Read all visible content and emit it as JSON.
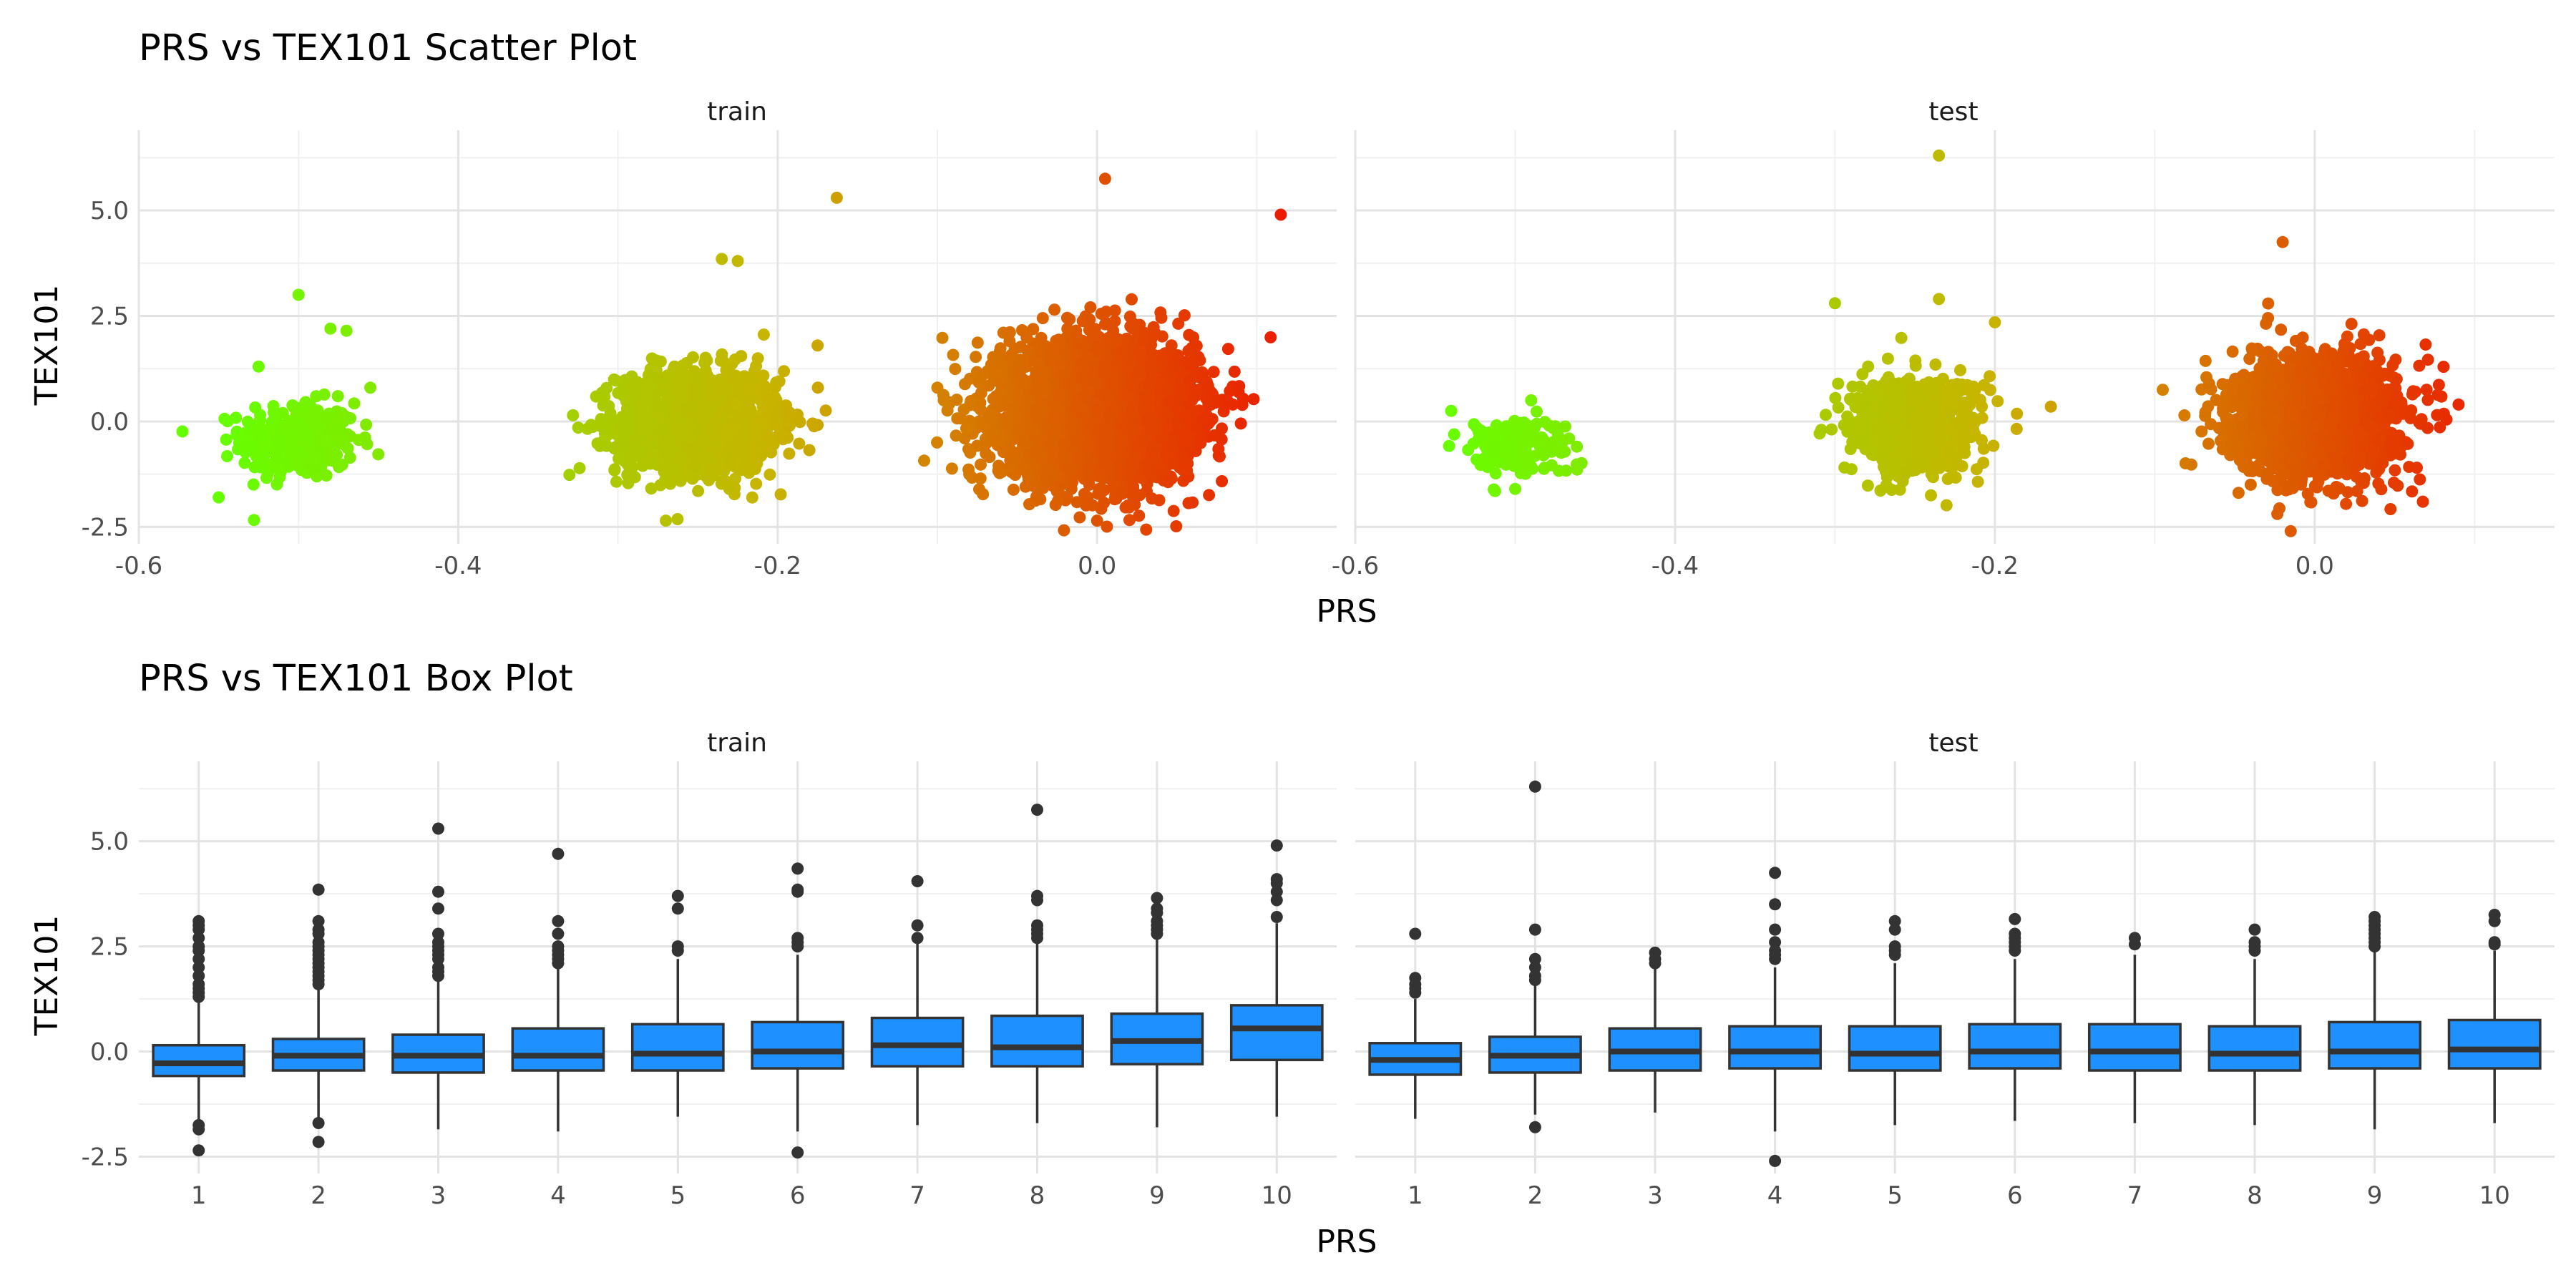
{
  "chart_data": [
    {
      "type": "scatter",
      "title": "PRS vs TEX101 Scatter Plot",
      "xlabel": "PRS",
      "ylabel": "TEX101",
      "facets": [
        "train",
        "test"
      ],
      "xlim": [
        -0.6,
        0.15
      ],
      "ylim": [
        -2.9,
        6.9
      ],
      "x_ticks": [
        "-0.6",
        "-0.4",
        "-0.2",
        "0.0"
      ],
      "x_tick_values": [
        -0.6,
        -0.4,
        -0.2,
        0.0
      ],
      "y_ticks": [
        "-2.5",
        "0.0",
        "2.5",
        "5.0"
      ],
      "y_tick_values": [
        -2.5,
        0.0,
        2.5,
        5.0
      ],
      "color_scale": {
        "low": "#66ff00",
        "mid": "#c8b400",
        "high": "#ee1100",
        "domain": [
          -0.55,
          0.14
        ]
      },
      "grid": true,
      "legend": "none",
      "series": [
        {
          "facet": "train",
          "clusters": [
            {
              "x_center": -0.5,
              "x_sd": 0.018,
              "y_center": -0.45,
              "y_sd": 0.45,
              "n": 350
            },
            {
              "x_center": -0.25,
              "x_sd": 0.025,
              "y_center": 0.0,
              "y_sd": 0.6,
              "n": 1400
            },
            {
              "x_center": 0.0,
              "x_sd": 0.03,
              "y_center": 0.25,
              "y_sd": 0.8,
              "n": 3600
            }
          ],
          "notable_points": [
            {
              "x": -0.5,
              "y": 3.0
            },
            {
              "x": -0.48,
              "y": 2.2
            },
            {
              "x": -0.47,
              "y": 2.15
            },
            {
              "x": -0.455,
              "y": 0.8
            },
            {
              "x": -0.525,
              "y": 1.3
            },
            {
              "x": -0.55,
              "y": -1.8
            },
            {
              "x": -0.27,
              "y": -2.35
            },
            {
              "x": -0.235,
              "y": 3.85
            },
            {
              "x": -0.225,
              "y": 3.8
            },
            {
              "x": -0.163,
              "y": 5.3
            },
            {
              "x": -0.175,
              "y": 1.8
            },
            {
              "x": 0.0,
              "y": -2.35
            },
            {
              "x": 0.005,
              "y": 5.75
            },
            {
              "x": 0.115,
              "y": 4.9
            },
            {
              "x": 0.09,
              "y": -0.05
            },
            {
              "x": 0.085,
              "y": 0.4
            },
            {
              "x": -0.1,
              "y": 0.8
            },
            {
              "x": -0.08,
              "y": -1.25
            }
          ]
        },
        {
          "facet": "test",
          "clusters": [
            {
              "x_center": -0.5,
              "x_sd": 0.018,
              "y_center": -0.55,
              "y_sd": 0.35,
              "n": 150
            },
            {
              "x_center": -0.25,
              "x_sd": 0.02,
              "y_center": -0.1,
              "y_sd": 0.55,
              "n": 800
            },
            {
              "x_center": 0.0,
              "x_sd": 0.025,
              "y_center": 0.1,
              "y_sd": 0.7,
              "n": 2000
            }
          ],
          "notable_points": [
            {
              "x": -0.5,
              "y": -1.6
            },
            {
              "x": -0.49,
              "y": 0.5
            },
            {
              "x": -0.54,
              "y": 0.25
            },
            {
              "x": -0.3,
              "y": 2.8
            },
            {
              "x": -0.235,
              "y": 6.3
            },
            {
              "x": -0.235,
              "y": 2.9
            },
            {
              "x": -0.2,
              "y": 2.35
            },
            {
              "x": -0.165,
              "y": 0.35
            },
            {
              "x": -0.24,
              "y": -1.75
            },
            {
              "x": -0.02,
              "y": 4.25
            },
            {
              "x": -0.015,
              "y": -2.6
            },
            {
              "x": 0.09,
              "y": 0.4
            },
            {
              "x": -0.095,
              "y": 0.75
            },
            {
              "x": -0.04,
              "y": -1.5
            },
            {
              "x": 0.07,
              "y": 0.75
            }
          ]
        }
      ]
    },
    {
      "type": "box",
      "title": "PRS vs TEX101 Box Plot",
      "xlabel": "PRS",
      "ylabel": "TEX101",
      "facets": [
        "train",
        "test"
      ],
      "categories": [
        "1",
        "2",
        "3",
        "4",
        "5",
        "6",
        "7",
        "8",
        "9",
        "10"
      ],
      "ylim": [
        -2.9,
        6.9
      ],
      "y_ticks": [
        "-2.5",
        "0.0",
        "2.5",
        "5.0"
      ],
      "y_tick_values": [
        -2.5,
        0.0,
        2.5,
        5.0
      ],
      "fill_color": "#1e90ff",
      "grid": true,
      "legend": "none",
      "series": [
        {
          "facet": "train",
          "boxes": [
            {
              "q1": -0.58,
              "median": -0.28,
              "q3": 0.15,
              "whisker_low": -1.65,
              "whisker_high": 1.25,
              "outliers": [
                3.1,
                3.0,
                2.9,
                2.7,
                2.5,
                2.4,
                2.2,
                2.0,
                1.8,
                1.6,
                1.5,
                1.4,
                1.3,
                -1.75,
                -1.85,
                -2.35
              ]
            },
            {
              "q1": -0.45,
              "median": -0.1,
              "q3": 0.3,
              "whisker_low": -1.6,
              "whisker_high": 1.5,
              "outliers": [
                3.85,
                3.1,
                2.9,
                2.8,
                2.6,
                2.5,
                2.4,
                2.3,
                2.2,
                2.1,
                2.0,
                1.9,
                1.8,
                1.7,
                1.6,
                -1.7,
                -2.15
              ]
            },
            {
              "q1": -0.5,
              "median": -0.1,
              "q3": 0.4,
              "whisker_low": -1.85,
              "whisker_high": 1.7,
              "outliers": [
                5.3,
                3.8,
                3.4,
                2.8,
                2.6,
                2.5,
                2.4,
                2.3,
                2.2,
                2.0,
                1.9,
                1.8
              ]
            },
            {
              "q1": -0.45,
              "median": -0.1,
              "q3": 0.55,
              "whisker_low": -1.9,
              "whisker_high": 2.0,
              "outliers": [
                4.7,
                3.1,
                2.8,
                2.5,
                2.4,
                2.3,
                2.2,
                2.1
              ]
            },
            {
              "q1": -0.45,
              "median": -0.05,
              "q3": 0.65,
              "whisker_low": -1.55,
              "whisker_high": 2.2,
              "outliers": [
                3.7,
                3.4,
                2.5,
                2.4
              ]
            },
            {
              "q1": -0.4,
              "median": 0.0,
              "q3": 0.7,
              "whisker_low": -1.9,
              "whisker_high": 2.3,
              "outliers": [
                4.35,
                3.85,
                3.8,
                2.7,
                2.6,
                2.5,
                -2.4
              ]
            },
            {
              "q1": -0.35,
              "median": 0.15,
              "q3": 0.8,
              "whisker_low": -1.75,
              "whisker_high": 2.6,
              "outliers": [
                4.05,
                3.0,
                2.7
              ]
            },
            {
              "q1": -0.35,
              "median": 0.1,
              "q3": 0.85,
              "whisker_low": -1.7,
              "whisker_high": 2.65,
              "outliers": [
                5.75,
                3.7,
                3.6,
                3.0,
                2.9,
                2.8,
                2.7
              ]
            },
            {
              "q1": -0.3,
              "median": 0.25,
              "q3": 0.9,
              "whisker_low": -1.8,
              "whisker_high": 2.7,
              "outliers": [
                3.65,
                3.4,
                3.3,
                3.1,
                3.0,
                2.9,
                2.8
              ]
            },
            {
              "q1": -0.2,
              "median": 0.55,
              "q3": 1.1,
              "whisker_low": -1.55,
              "whisker_high": 3.05,
              "outliers": [
                4.9,
                4.1,
                4.0,
                3.8,
                3.6,
                3.2
              ]
            }
          ]
        },
        {
          "facet": "test",
          "boxes": [
            {
              "q1": -0.55,
              "median": -0.2,
              "q3": 0.2,
              "whisker_low": -1.6,
              "whisker_high": 1.25,
              "outliers": [
                2.8,
                1.75,
                1.6,
                1.5,
                1.4
              ]
            },
            {
              "q1": -0.5,
              "median": -0.1,
              "q3": 0.35,
              "whisker_low": -1.5,
              "whisker_high": 1.6,
              "outliers": [
                6.3,
                2.9,
                2.2,
                2.0,
                1.8,
                1.7,
                -1.8
              ]
            },
            {
              "q1": -0.45,
              "median": 0.0,
              "q3": 0.55,
              "whisker_low": -1.45,
              "whisker_high": 2.0,
              "outliers": [
                2.35,
                2.2,
                2.1
              ]
            },
            {
              "q1": -0.4,
              "median": 0.0,
              "q3": 0.6,
              "whisker_low": -1.9,
              "whisker_high": 2.0,
              "outliers": [
                4.25,
                3.5,
                2.9,
                2.6,
                2.4,
                2.3,
                2.2,
                -2.6
              ]
            },
            {
              "q1": -0.45,
              "median": -0.05,
              "q3": 0.6,
              "whisker_low": -1.75,
              "whisker_high": 2.1,
              "outliers": [
                3.1,
                2.9,
                2.5,
                2.4,
                2.3
              ]
            },
            {
              "q1": -0.4,
              "median": 0.0,
              "q3": 0.65,
              "whisker_low": -1.65,
              "whisker_high": 2.2,
              "outliers": [
                3.15,
                2.8,
                2.7,
                2.6,
                2.5,
                2.4
              ]
            },
            {
              "q1": -0.45,
              "median": 0.0,
              "q3": 0.65,
              "whisker_low": -1.7,
              "whisker_high": 2.3,
              "outliers": [
                2.7,
                2.55
              ]
            },
            {
              "q1": -0.45,
              "median": -0.05,
              "q3": 0.6,
              "whisker_low": -1.75,
              "whisker_high": 2.2,
              "outliers": [
                2.9,
                2.6,
                2.5,
                2.4
              ]
            },
            {
              "q1": -0.4,
              "median": 0.0,
              "q3": 0.7,
              "whisker_low": -1.85,
              "whisker_high": 2.4,
              "outliers": [
                3.2,
                3.1,
                3.0,
                2.9,
                2.8,
                2.7,
                2.6,
                2.5
              ]
            },
            {
              "q1": -0.4,
              "median": 0.05,
              "q3": 0.75,
              "whisker_low": -1.7,
              "whisker_high": 2.4,
              "outliers": [
                3.25,
                3.1,
                2.6,
                2.55
              ]
            }
          ]
        }
      ]
    }
  ]
}
